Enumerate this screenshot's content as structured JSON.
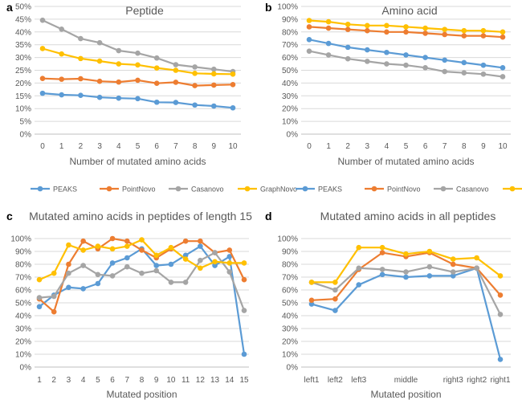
{
  "colors": {
    "PEAKS": "#5B9BD5",
    "PointNovo": "#ED7D31",
    "Casanovo": "#A5A5A5",
    "GraphNovo": "#FFC000",
    "grid": "#d9d9d9",
    "text": "#595959"
  },
  "chart_data": [
    {
      "letter": "a",
      "type": "line",
      "title": "Peptide",
      "xlabel": "Number of mutated amino acids",
      "ylabel": "",
      "x": [
        "0",
        "1",
        "2",
        "3",
        "4",
        "5",
        "6",
        "7",
        "8",
        "9",
        "10"
      ],
      "ylim": [
        0,
        50
      ],
      "yticks": [
        "0%",
        "5%",
        "10%",
        "15%",
        "20%",
        "25%",
        "30%",
        "35%",
        "40%",
        "45%",
        "50%"
      ],
      "grid": true,
      "legend": "bottom",
      "series": [
        {
          "name": "PEAKS",
          "values": [
            16,
            15.4,
            15.2,
            14.4,
            14.1,
            13.9,
            12.5,
            12.4,
            11.4,
            11.0,
            10.3
          ]
        },
        {
          "name": "PointNovo",
          "values": [
            21.8,
            21.5,
            21.7,
            20.7,
            20.4,
            21.1,
            19.9,
            20.3,
            19.0,
            19.2,
            19.4
          ]
        },
        {
          "name": "Casanovo",
          "values": [
            44.6,
            41.1,
            37.4,
            35.8,
            32.7,
            31.7,
            29.8,
            27.2,
            26.3,
            25.4,
            24.5
          ]
        },
        {
          "name": "GraphNovo",
          "values": [
            33.5,
            31.4,
            29.6,
            28.6,
            27.5,
            27.1,
            25.9,
            25.0,
            23.8,
            23.6,
            23.5
          ]
        }
      ]
    },
    {
      "letter": "b",
      "type": "line",
      "title": "Amino acid",
      "xlabel": "Number of mutated amino acids",
      "ylabel": "",
      "x": [
        "0",
        "1",
        "2",
        "3",
        "4",
        "5",
        "6",
        "7",
        "8",
        "9",
        "10"
      ],
      "ylim": [
        0,
        100
      ],
      "yticks": [
        "0%",
        "10%",
        "20%",
        "30%",
        "40%",
        "50%",
        "60%",
        "70%",
        "80%",
        "90%",
        "100%"
      ],
      "grid": true,
      "legend": "bottom",
      "series": [
        {
          "name": "PEAKS",
          "values": [
            74,
            71,
            68,
            66,
            64,
            62,
            60,
            58,
            56,
            54,
            52
          ]
        },
        {
          "name": "PointNovo",
          "values": [
            84,
            83,
            82,
            81,
            80,
            80,
            79,
            78,
            77,
            77,
            76
          ]
        },
        {
          "name": "Casanovo",
          "values": [
            65,
            62,
            59,
            57,
            55,
            54,
            52,
            49,
            48,
            47,
            45
          ]
        },
        {
          "name": "GraphNovo",
          "values": [
            89,
            88,
            86,
            85,
            85,
            84,
            83,
            82,
            81,
            81,
            80
          ]
        }
      ]
    },
    {
      "letter": "c",
      "type": "line",
      "title": "Mutated amino acids in peptides of length 15",
      "xlabel": "Mutated position",
      "ylabel": "",
      "x": [
        "1",
        "2",
        "3",
        "4",
        "5",
        "6",
        "7",
        "8",
        "9",
        "10",
        "11",
        "12",
        "13",
        "14",
        "15"
      ],
      "ylim": [
        0,
        100
      ],
      "yticks": [
        "0%",
        "10%",
        "20%",
        "30%",
        "40%",
        "50%",
        "60%",
        "70%",
        "80%",
        "90%",
        "100%"
      ],
      "grid": true,
      "legend": "none",
      "series": [
        {
          "name": "PEAKS",
          "values": [
            47,
            56,
            62,
            61,
            65,
            81,
            85,
            92,
            79,
            80,
            87,
            94,
            79,
            86,
            10
          ]
        },
        {
          "name": "PointNovo",
          "values": [
            53,
            43,
            80,
            98,
            92,
            100,
            98,
            91,
            85,
            92,
            98,
            98,
            89,
            91,
            68
          ]
        },
        {
          "name": "Casanovo",
          "values": [
            54,
            55,
            73,
            79,
            72,
            71,
            78,
            73,
            75,
            66,
            66,
            83,
            89,
            74,
            44
          ]
        },
        {
          "name": "GraphNovo",
          "values": [
            68,
            73,
            95,
            91,
            94,
            92,
            94,
            99,
            87,
            93,
            84,
            77,
            82,
            81,
            81
          ]
        }
      ]
    },
    {
      "letter": "d",
      "type": "line",
      "title": "Mutated amino acids in all peptides",
      "xlabel": "Mutated position",
      "ylabel": "",
      "x": [
        "left1",
        "left2",
        "left3",
        "",
        "middle",
        "",
        "right3",
        "right2",
        "right1"
      ],
      "ylim": [
        0,
        100
      ],
      "yticks": [
        "0%",
        "10%",
        "20%",
        "30%",
        "40%",
        "50%",
        "60%",
        "70%",
        "80%",
        "90%",
        "100%"
      ],
      "grid": true,
      "legend": "none",
      "series": [
        {
          "name": "PEAKS",
          "values": [
            49,
            44,
            64,
            72,
            70,
            71,
            71,
            77,
            6
          ]
        },
        {
          "name": "PointNovo",
          "values": [
            52,
            53,
            76,
            89,
            86,
            89,
            80,
            77,
            56
          ]
        },
        {
          "name": "Casanovo",
          "values": [
            66,
            60,
            77,
            76,
            74,
            78,
            74,
            77,
            41
          ]
        },
        {
          "name": "GraphNovo",
          "values": [
            66,
            66,
            93,
            93,
            88,
            90,
            84,
            85,
            71
          ]
        }
      ]
    }
  ]
}
